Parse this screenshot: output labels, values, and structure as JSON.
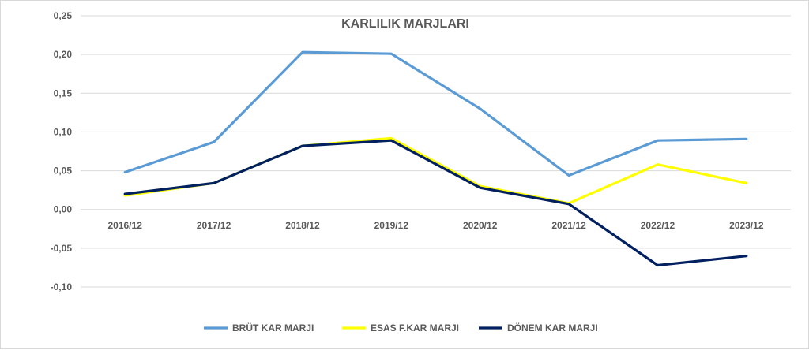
{
  "chart_data": {
    "type": "line",
    "title": "KARLILIK MARJLARI",
    "categories": [
      "2016/12",
      "2017/12",
      "2018/12",
      "2019/12",
      "2020/12",
      "2021/12",
      "2022/12",
      "2023/12"
    ],
    "y_tick_labels": [
      "0,25",
      "0,20",
      "0,15",
      "0,10",
      "0,05",
      "0,00",
      "-0,05",
      "-0,10"
    ],
    "y_ticks": [
      0.25,
      0.2,
      0.15,
      0.1,
      0.05,
      0.0,
      -0.05,
      -0.1
    ],
    "ylim": [
      -0.1,
      0.25
    ],
    "grid": true,
    "legend_position": "bottom",
    "series": [
      {
        "name": "BRÜT KAR MARJI",
        "color": "#5b9bd5",
        "values": [
          0.048,
          0.087,
          0.203,
          0.201,
          0.13,
          0.044,
          0.089,
          0.091
        ]
      },
      {
        "name": "ESAS F.KAR MARJI",
        "color": "#ffff00",
        "values": [
          0.018,
          0.034,
          0.082,
          0.092,
          0.03,
          0.008,
          0.058,
          0.034
        ]
      },
      {
        "name": "DÖNEM KAR MARJI",
        "color": "#002060",
        "values": [
          0.02,
          0.034,
          0.082,
          0.089,
          0.028,
          0.007,
          -0.072,
          -0.06
        ]
      }
    ]
  }
}
